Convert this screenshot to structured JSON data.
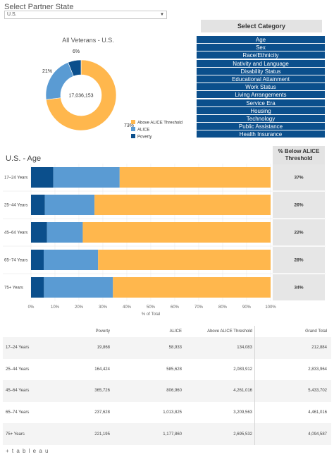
{
  "filter": {
    "label": "Select Partner State",
    "selected": "U.S."
  },
  "category": {
    "header": "Select Category",
    "items": [
      "Age",
      "Sex",
      "Race/Ethnicity",
      "Nativity and Language",
      "Disability Status",
      "Educational Attainment",
      "Work Status",
      "Living Arrangements",
      "Service Era",
      "Housing",
      "Technology",
      "Public Assistance",
      "Health Insurance"
    ]
  },
  "colors": {
    "poverty": "#0b4f8c",
    "alice": "#5a9bd3",
    "above": "#ffb74d",
    "nav": "#0b4f8c",
    "header_bg": "#e3e3e3"
  },
  "chart_data": [
    {
      "type": "pie",
      "title": "All Veterans  -  U.S.",
      "center_label": "17,036,153",
      "slices": [
        {
          "name": "Above ALICE Threshold",
          "value": 73,
          "label": "73%"
        },
        {
          "name": "ALICE",
          "value": 21,
          "label": "21%"
        },
        {
          "name": "Poverty",
          "value": 6,
          "label": "6%"
        }
      ],
      "legend": [
        "Above ALICE Threshold",
        "ALICE",
        "Poverty"
      ]
    },
    {
      "type": "bar",
      "title": "U.S. - Age",
      "categories": [
        "17–24 Years",
        "25–44 Years",
        "45–64 Years",
        "65–74 Years",
        "75+ Years"
      ],
      "series": [
        {
          "name": "Poverty",
          "values": [
            9.3,
            5.8,
            6.7,
            5.3,
            5.4
          ]
        },
        {
          "name": "ALICE",
          "values": [
            27.7,
            20.7,
            14.9,
            22.7,
            28.8
          ]
        },
        {
          "name": "Above ALICE Threshold",
          "values": [
            63.0,
            73.5,
            78.4,
            72.0,
            65.8
          ]
        }
      ],
      "xlabel": "% of Total",
      "xticks": [
        "0%",
        "10%",
        "20%",
        "30%",
        "40%",
        "50%",
        "60%",
        "70%",
        "80%",
        "90%",
        "100%"
      ],
      "xlim": [
        0,
        100
      ]
    }
  ],
  "pct_below": {
    "header_line1": "% Below ALICE",
    "header_line2": "Threshold",
    "values": [
      "37%",
      "26%",
      "22%",
      "28%",
      "34%"
    ]
  },
  "table": {
    "columns": [
      "",
      "Poverty",
      "ALICE",
      "Above ALICE Threshold",
      "Grand Total"
    ],
    "rows": [
      [
        "17–24 Years",
        "19,868",
        "58,933",
        "134,083",
        "212,884"
      ],
      [
        "25–44 Years",
        "164,424",
        "585,628",
        "2,083,912",
        "2,833,964"
      ],
      [
        "45–64 Years",
        "365,726",
        "806,960",
        "4,261,016",
        "5,433,702"
      ],
      [
        "65–74 Years",
        "237,628",
        "1,013,825",
        "3,209,563",
        "4,461,016"
      ],
      [
        "75+ Years",
        "221,195",
        "1,177,860",
        "2,695,532",
        "4,094,587"
      ]
    ]
  },
  "footer": {
    "logo": "+ t a b l e a u"
  }
}
